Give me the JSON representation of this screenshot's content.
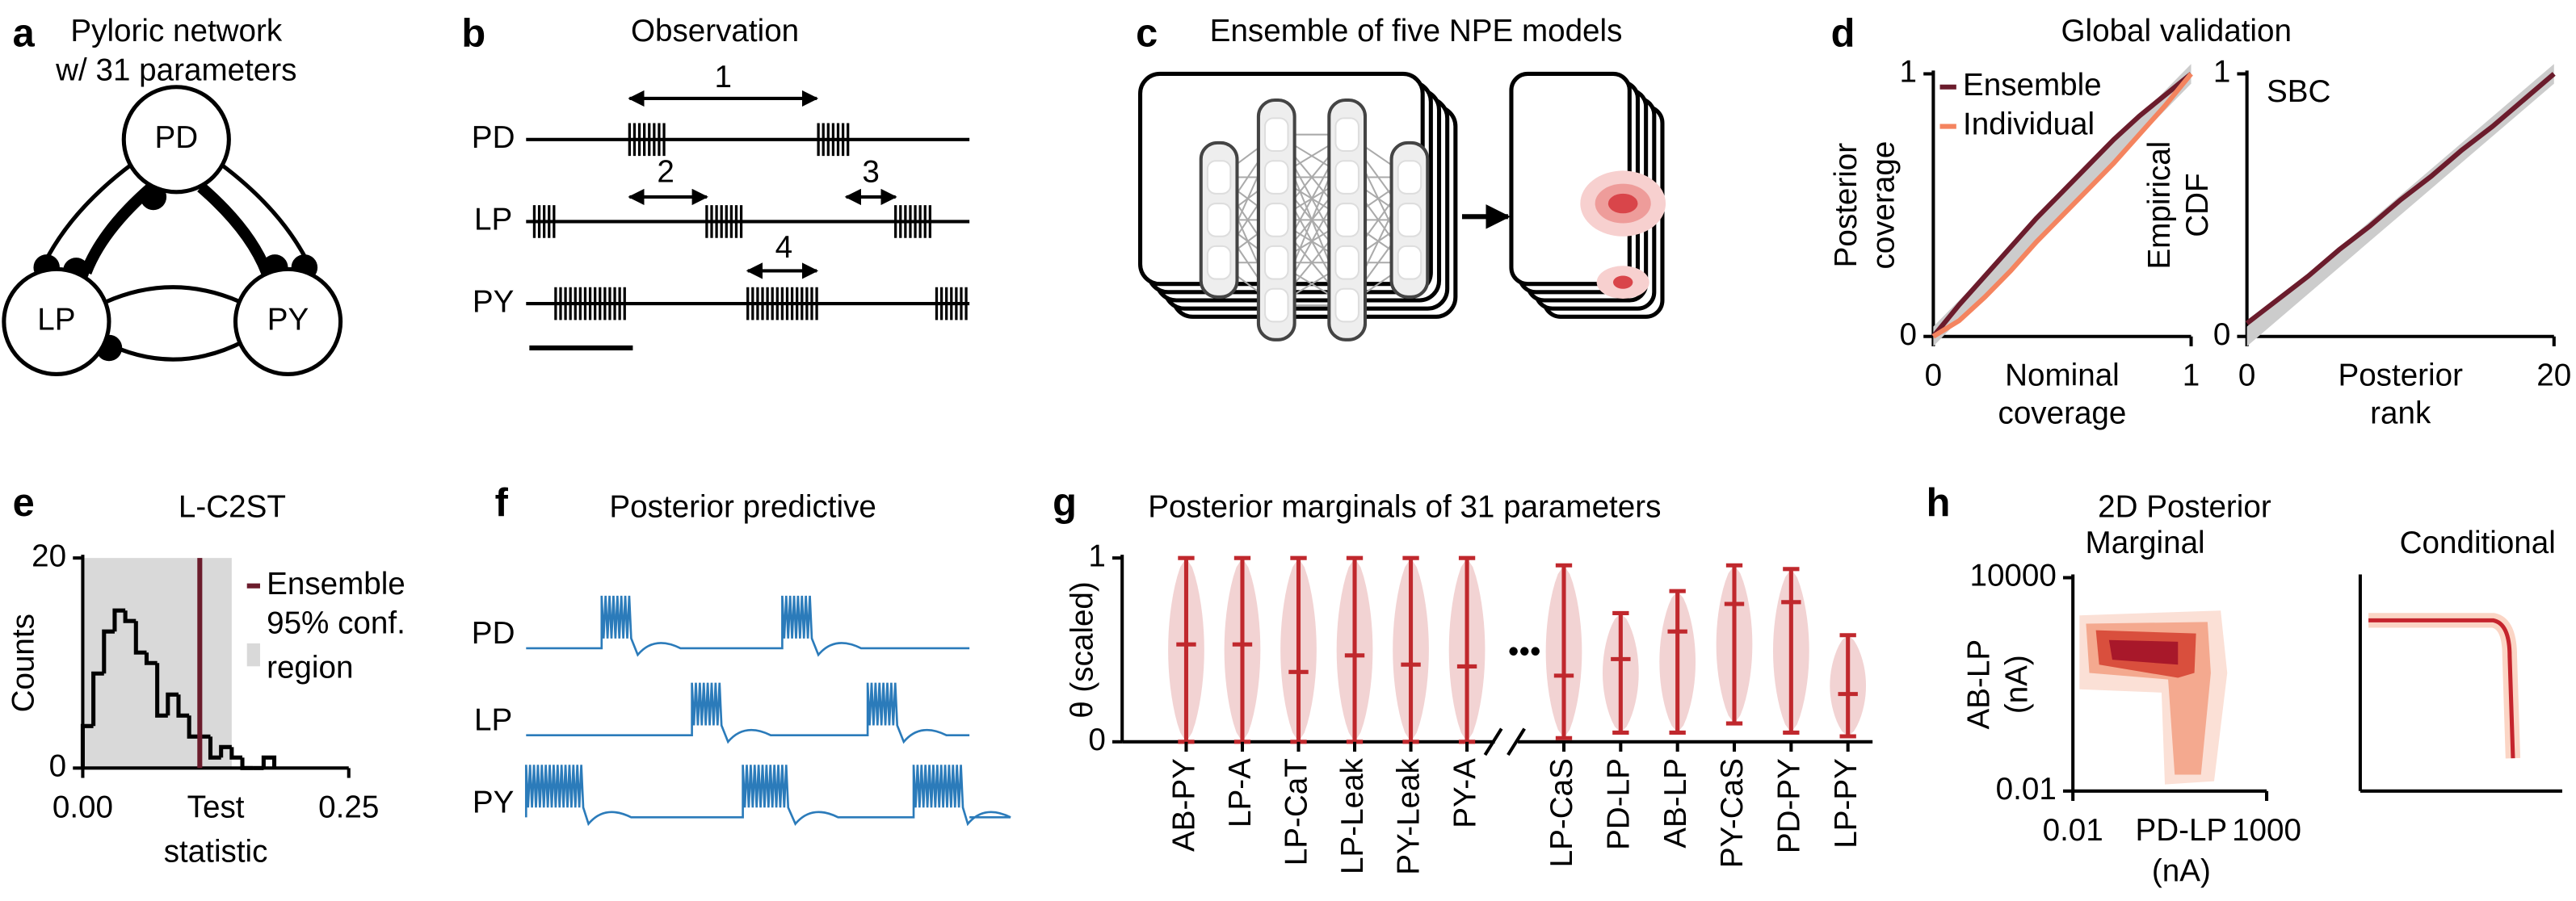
{
  "panels": {
    "a": {
      "letter": "a",
      "title": [
        "Pyloric network",
        "w/ 31 parameters"
      ],
      "nodes": [
        "PD",
        "LP",
        "PY"
      ]
    },
    "b": {
      "letter": "b",
      "title": "Observation",
      "rows": [
        "PD",
        "LP",
        "PY"
      ],
      "intervals": [
        "1",
        "2",
        "3",
        "4"
      ]
    },
    "c": {
      "letter": "c",
      "title": "Ensemble of five NPE models"
    },
    "d": {
      "letter": "d",
      "title": "Global validation"
    },
    "e": {
      "letter": "e"
    },
    "f": {
      "letter": "f",
      "title": "Posterior predictive",
      "rows": [
        "PD",
        "LP",
        "PY"
      ]
    },
    "g": {
      "letter": "g"
    },
    "h": {
      "letter": "h"
    }
  },
  "chart_data": [
    {
      "type": "line",
      "ylabel": [
        "Posterior",
        "coverage"
      ],
      "xlabel": [
        "Nominal",
        "coverage"
      ],
      "x": [
        0,
        0.1,
        0.2,
        0.3,
        0.4,
        0.5,
        0.6,
        0.7,
        0.8,
        0.9,
        1
      ],
      "series": [
        {
          "name": "Ensemble",
          "color": "#6b1c2c",
          "values": [
            0,
            0.12,
            0.23,
            0.34,
            0.45,
            0.55,
            0.65,
            0.75,
            0.84,
            0.92,
            1
          ]
        },
        {
          "name": "Individual",
          "color": "#f4845f",
          "values": [
            0,
            0.06,
            0.15,
            0.25,
            0.36,
            0.46,
            0.56,
            0.66,
            0.77,
            0.88,
            1
          ]
        }
      ],
      "xlim": [
        0,
        1
      ],
      "ylim": [
        0,
        1
      ],
      "xticks": [
        0,
        1
      ],
      "yticks": [
        0,
        1
      ],
      "legend": "upper left"
    },
    {
      "type": "line",
      "annotation": "SBC",
      "ylabel": [
        "Empirical",
        "CDF"
      ],
      "xlabel": [
        "Posterior",
        "rank"
      ],
      "x": [
        0,
        2,
        4,
        6,
        8,
        10,
        12,
        14,
        16,
        18,
        20
      ],
      "values": [
        0.05,
        0.14,
        0.23,
        0.33,
        0.42,
        0.52,
        0.61,
        0.71,
        0.8,
        0.9,
        1
      ],
      "color": "#6b1c2c",
      "xlim": [
        0,
        20
      ],
      "ylim": [
        0,
        1
      ],
      "xticks": [
        0,
        20
      ],
      "yticks": [
        0,
        1
      ]
    },
    {
      "type": "histogram",
      "title": "L-C2ST",
      "ylabel": "Counts",
      "xlabel": [
        "Test",
        "statistic"
      ],
      "bins": [
        0,
        0.01,
        0.02,
        0.03,
        0.04,
        0.05,
        0.06,
        0.07,
        0.08,
        0.09,
        0.1,
        0.11,
        0.12,
        0.13,
        0.14,
        0.15,
        0.16,
        0.17,
        0.18
      ],
      "values": [
        4,
        9,
        13,
        15,
        14,
        11,
        10,
        5,
        7,
        5,
        3,
        3,
        1,
        2,
        1,
        0,
        0,
        1
      ],
      "color": "#000000",
      "reference_line": {
        "name": "Ensemble",
        "value": 0.11,
        "color": "#6b1c2c"
      },
      "region": {
        "name": [
          "95% conf.",
          "region"
        ],
        "from": 0,
        "to": 0.14,
        "color": "#d9d9d9"
      },
      "xlim": [
        0,
        0.25
      ],
      "ylim": [
        0,
        20
      ],
      "xticks": [
        {
          "value": 0,
          "label": "0.00"
        },
        {
          "value": 0.25,
          "label": "0.25"
        }
      ],
      "yticks": [
        0,
        20
      ]
    },
    {
      "type": "violin",
      "title": "Posterior marginals of 31 parameters",
      "ylabel": "θ (scaled)",
      "categories": [
        "AB-PY",
        "LP-A",
        "LP-CaT",
        "LP-Leak",
        "PY-Leak",
        "PY-A",
        "LP-CaS",
        "PD-LP",
        "AB-LP",
        "PY-CaS",
        "PD-PY",
        "LP-PY"
      ],
      "values": [
        0.53,
        0.53,
        0.38,
        0.47,
        0.42,
        0.41,
        0.36,
        0.45,
        0.6,
        0.75,
        0.76,
        0.26
      ],
      "lower": [
        0,
        0,
        0,
        0,
        0,
        0,
        0.02,
        0.05,
        0.05,
        0.1,
        0.05,
        0.03
      ],
      "upper": [
        1,
        1,
        1,
        1,
        1,
        1,
        0.96,
        0.7,
        0.82,
        0.96,
        0.94,
        0.58
      ],
      "break_label": "•••",
      "color": "#c0282d",
      "fill": "#f2d3d3",
      "ylim": [
        0,
        1
      ],
      "yticks": [
        0,
        1
      ]
    },
    {
      "type": "density",
      "title": "2D Posterior",
      "subtitle": "Marginal",
      "xlabel": [
        "PD-LP",
        "(nA)"
      ],
      "ylabel": [
        "AB-LP",
        "(nA)"
      ],
      "log_scale": true,
      "xlim": [
        0.01,
        1000
      ],
      "ylim": [
        0.01,
        10000
      ],
      "xticks": [
        0.01,
        1000
      ],
      "yticks": [
        0.01,
        10000
      ]
    },
    {
      "type": "density",
      "subtitle": "Conditional",
      "log_scale": true,
      "xlim": [
        0.01,
        1000
      ],
      "ylim": [
        0.01,
        10000
      ]
    }
  ]
}
